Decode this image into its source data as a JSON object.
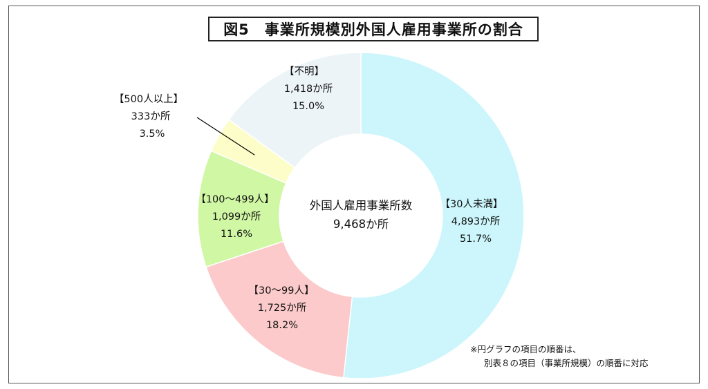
{
  "title": "図5　事業所規模別外国人雇用事業所の割合",
  "chart_data": {
    "type": "pie",
    "variant": "donut",
    "center_label": {
      "line1": "外国人雇用事業所数",
      "line2": "9,468か所"
    },
    "slices": [
      {
        "label": "【30人未満】",
        "count": "4,893か所",
        "percent_text": "51.7%",
        "value": 51.7,
        "color": "#ccf6fb"
      },
      {
        "label": "【30～99人】",
        "count": "1,725か所",
        "percent_text": "18.2%",
        "value": 18.2,
        "color": "#fccaca"
      },
      {
        "label": "【100～499人】",
        "count": "1,099か所",
        "percent_text": "11.6%",
        "value": 11.6,
        "color": "#d0f7a3"
      },
      {
        "label": "【500人以上】",
        "count": "333か所",
        "percent_text": "3.5%",
        "value": 3.5,
        "color": "#fdfdc9"
      },
      {
        "label": "【不明】",
        "count": "1,418か所",
        "percent_text": "15.0%",
        "value": 15.0,
        "color": "#edf4f8"
      }
    ]
  },
  "note": {
    "line1": "※円グラフの項目の順番は、",
    "line2": "別表８の項目（事業所規模）の順番に対応"
  }
}
